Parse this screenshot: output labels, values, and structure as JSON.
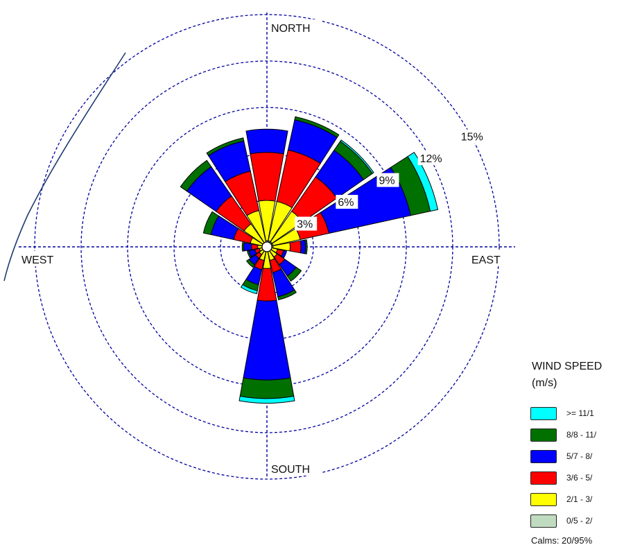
{
  "chart_data": {
    "type": "wind-rose",
    "directions": [
      "N",
      "NNE",
      "NE",
      "ENE",
      "E",
      "ESE",
      "SE",
      "SSE",
      "S",
      "SSW",
      "SW",
      "WSW",
      "W",
      "WNW",
      "NW",
      "NNW"
    ],
    "compass_labels": {
      "north": "NORTH",
      "east": "EAST",
      "south": "SOUTH",
      "west": "WEST"
    },
    "radial_ticks": [
      {
        "value": 3,
        "label": "3%"
      },
      {
        "value": 6,
        "label": "6%"
      },
      {
        "value": 9,
        "label": "9%"
      },
      {
        "value": 12,
        "label": "12%"
      },
      {
        "value": 15,
        "label": "15%"
      }
    ],
    "rmax": 15,
    "grid": true,
    "legend_position": "bottom-right",
    "legend_title": "WIND SPEED",
    "legend_unit": "(m/s)",
    "series": [
      {
        "name": "0/5 - 2/",
        "color": "#c0dcc0"
      },
      {
        "name": "2/1 - 3/",
        "color": "#ffff00"
      },
      {
        "name": "3/6 - 5/",
        "color": "#ff0000"
      },
      {
        "name": "5/7 - 8/",
        "color": "#0000ff"
      },
      {
        "name": "8/8 - 11/",
        "color": "#007000"
      },
      {
        "name": ">= 11/1",
        "color": "#00ffff"
      }
    ],
    "cumulative_percent": {
      "N": [
        0.4,
        3.0,
        6.1,
        7.6,
        7.6,
        7.6
      ],
      "NNE": [
        0.4,
        3.0,
        6.4,
        8.4,
        8.6,
        8.6
      ],
      "NE": [
        0.4,
        2.8,
        5.5,
        7.6,
        8.3,
        8.4
      ],
      "ENE": [
        0.4,
        2.2,
        4.1,
        9.5,
        10.8,
        11.3
      ],
      "E": [
        0.4,
        1.5,
        2.2,
        2.5,
        2.6,
        2.6
      ],
      "ESE": [
        0.3,
        0.7,
        1.1,
        1.3,
        1.3,
        1.3
      ],
      "SE": [
        0.3,
        0.8,
        1.4,
        2.3,
        2.7,
        2.7
      ],
      "SSE": [
        0.3,
        0.9,
        1.7,
        3.3,
        3.5,
        3.5
      ],
      "S": [
        0.3,
        1.4,
        3.5,
        8.6,
        9.8,
        10.1
      ],
      "SSW": [
        0.3,
        0.9,
        1.5,
        2.5,
        2.9,
        3.1
      ],
      "SW": [
        0.3,
        0.6,
        0.9,
        1.4,
        1.6,
        1.6
      ],
      "WSW": [
        0.3,
        0.5,
        0.8,
        1.2,
        1.3,
        1.3
      ],
      "W": [
        0.3,
        0.6,
        1.0,
        1.5,
        1.6,
        1.6
      ],
      "WNW": [
        0.3,
        1.1,
        2.2,
        3.7,
        4.2,
        4.2
      ],
      "NW": [
        0.3,
        1.8,
        4.0,
        6.3,
        6.8,
        6.8
      ],
      "NNW": [
        0.3,
        2.4,
        5.0,
        7.0,
        7.2,
        7.2
      ]
    },
    "calms": "Calms: 20/95%"
  }
}
